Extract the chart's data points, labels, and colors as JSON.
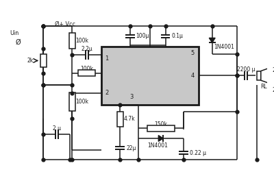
{
  "bg_color": "#ffffff",
  "line_color": "#1a1a1a",
  "ic_fill": "#c8c8c8",
  "ic_border": "#1a1a1a",
  "fig_width": 4.0,
  "fig_height": 2.54,
  "dpi": 100,
  "labels": {
    "vcc": "+ Vcc",
    "uin": "Uin",
    "r1": "100k",
    "r2": "2k",
    "r3": "100k",
    "r4": "100k",
    "r5": "4.7k",
    "r6": "150k",
    "rl": "RL",
    "c1": "100μ",
    "c2": "0.1μ",
    "c3": "2.2μ",
    "c4": "2 μ",
    "c5": "22μ",
    "c6": "2200 μ",
    "c7": "0.22 μ",
    "d_top": "1N4001",
    "d_bot": "1N4001",
    "pin1": "1",
    "pin2": "2",
    "pin3": "3",
    "pin4": "4",
    "pin5": "5",
    "lbl2a": "2",
    "lbl2b": "2"
  }
}
